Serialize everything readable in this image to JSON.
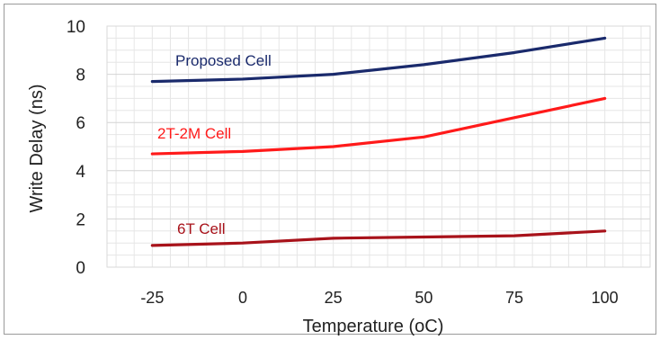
{
  "chart_data": {
    "type": "line",
    "title": "",
    "xlabel": "Temperature (oC)",
    "ylabel": "Write Delay (ns)",
    "x": [
      -25,
      0,
      25,
      50,
      75,
      100
    ],
    "x_tick_labels": [
      "-25",
      "0",
      "25",
      "50",
      "75",
      "100"
    ],
    "xlim": [
      -37.5,
      112.5
    ],
    "ylim": [
      0,
      10
    ],
    "y_ticks": [
      0,
      2,
      4,
      6,
      8,
      10
    ],
    "grid": "vertical minor and horizontal gridlines on",
    "legend": "none (series labeled inline on chart)",
    "series": [
      {
        "name": "Proposed Cell",
        "color": "#1a2a6c",
        "values": [
          7.7,
          7.8,
          8.0,
          8.4,
          8.9,
          9.5
        ]
      },
      {
        "name": "2T-2M Cell",
        "color": "#ff1a1a",
        "values": [
          4.7,
          4.8,
          5.0,
          5.4,
          6.2,
          7.0
        ]
      },
      {
        "name": "6T Cell",
        "color": "#a8121a",
        "values": [
          0.9,
          1.0,
          1.2,
          1.25,
          1.3,
          1.5
        ]
      }
    ]
  }
}
